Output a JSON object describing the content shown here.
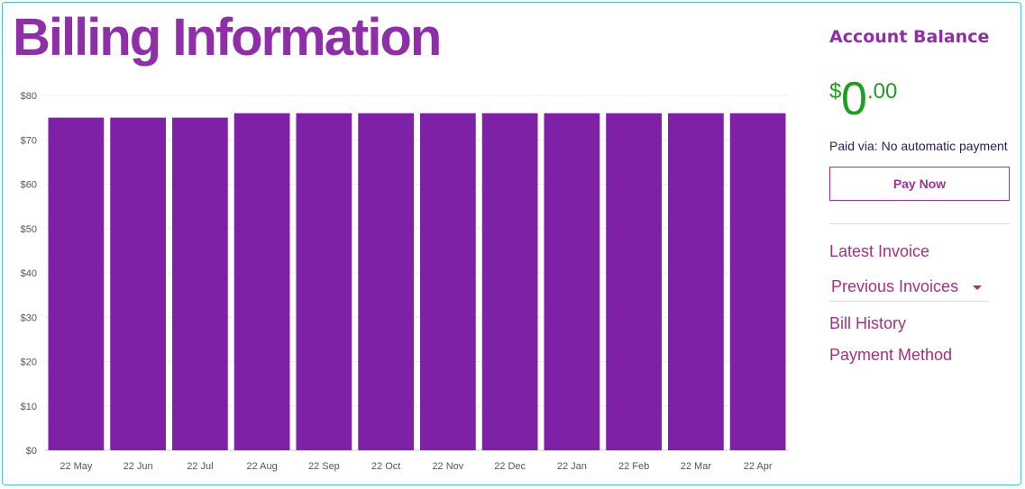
{
  "page": {
    "title": "Billing Information"
  },
  "chart_data": {
    "type": "bar",
    "categories": [
      "22 May",
      "22 Jun",
      "22 Jul",
      "22 Aug",
      "22 Sep",
      "22 Oct",
      "22 Nov",
      "22 Dec",
      "22 Jan",
      "22 Feb",
      "22 Mar",
      "22 Apr"
    ],
    "values": [
      75,
      75,
      75,
      76,
      76,
      76,
      76,
      76,
      76,
      76,
      76,
      76
    ],
    "ylim": [
      0,
      80
    ],
    "yticks": [
      "$0",
      "$10",
      "$20",
      "$30",
      "$40",
      "$50",
      "$60",
      "$70",
      "$80"
    ],
    "grid": true,
    "bar_color": "#7e21a6"
  },
  "account": {
    "heading": "Account Balance",
    "currency": "$",
    "dollars": "0",
    "cents": ".00",
    "paid_via": "Paid via: No automatic payment",
    "pay_button": "Pay Now"
  },
  "links": {
    "latest_invoice": "Latest Invoice",
    "previous_invoices": "Previous Invoices",
    "bill_history": "Bill History",
    "payment_method": "Payment Method"
  },
  "icons": {
    "dropdown": "caret-down-icon"
  },
  "colors": {
    "title": "#8e2fa8",
    "link": "#a6317f",
    "balance": "#1f9e1f",
    "border": "#4ec3dc"
  }
}
